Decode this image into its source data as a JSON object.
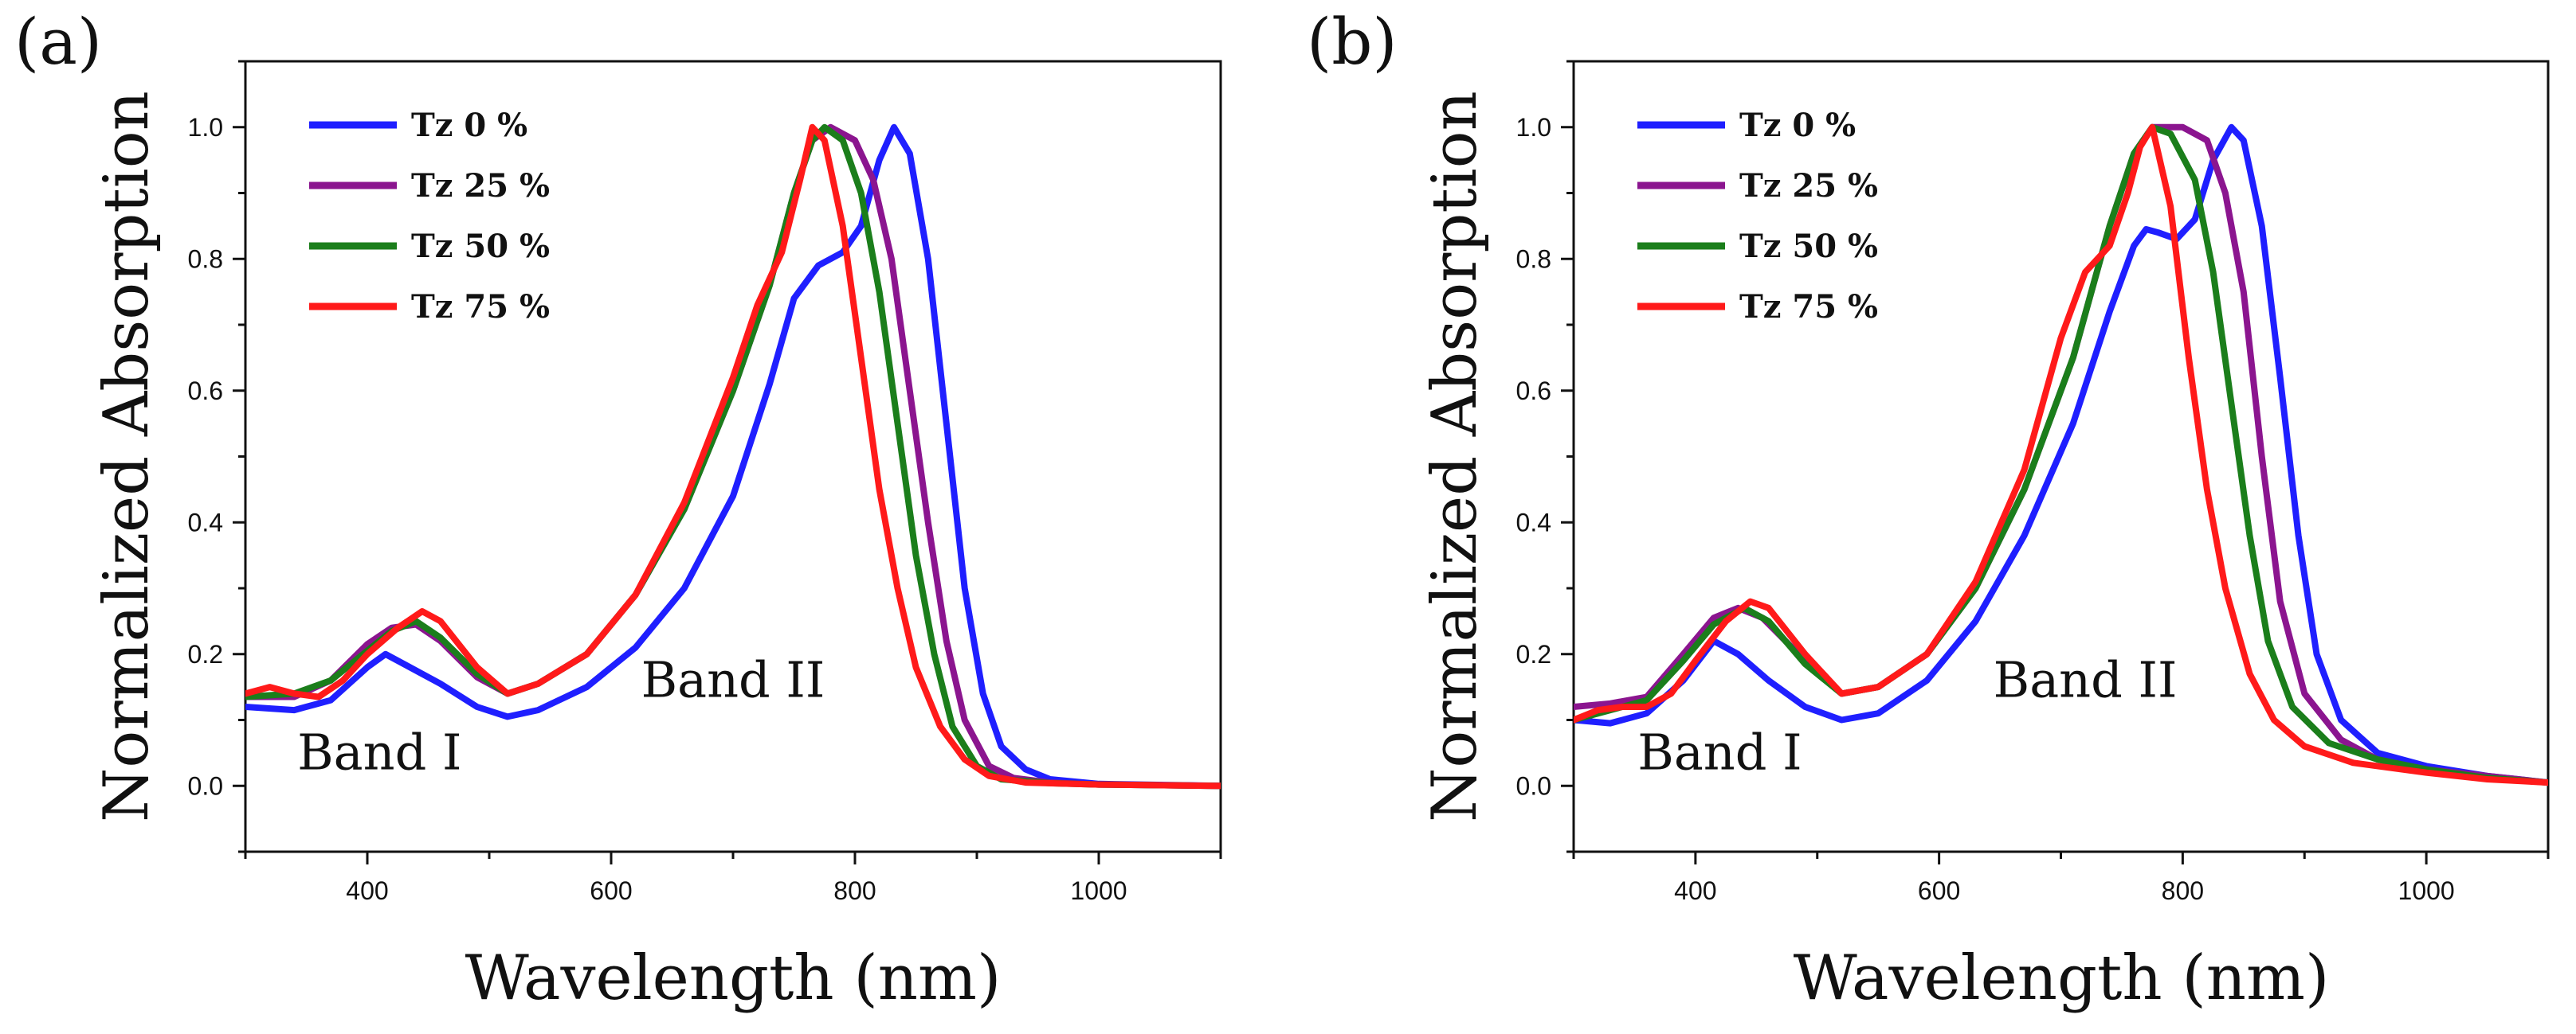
{
  "chart_data": [
    {
      "type": "line",
      "panel_label": "(a)",
      "title": "",
      "xlabel": "Wavelength (nm)",
      "ylabel": "Normalized Absorption",
      "xlim": [
        300,
        1100
      ],
      "ylim": [
        -0.1,
        1.1
      ],
      "x_ticks": [
        400,
        600,
        800,
        1000
      ],
      "x_tick_labels": [
        "400",
        "600",
        "800",
        "1000"
      ],
      "y_ticks": [
        0.0,
        0.2,
        0.4,
        0.6,
        0.8,
        1.0
      ],
      "y_tick_labels": [
        "0.0",
        "0.2",
        "0.4",
        "0.6",
        "0.8",
        "1.0"
      ],
      "grid": false,
      "legend_position": "top-left",
      "annotations": [
        {
          "text": "Band I",
          "x": 410,
          "y": 0.025
        },
        {
          "text": "Band II",
          "x": 700,
          "y": 0.135
        }
      ],
      "series": [
        {
          "name": "Tz 0 %",
          "color": "#1f1fff",
          "points": [
            [
              300,
              0.12
            ],
            [
              340,
              0.115
            ],
            [
              370,
              0.13
            ],
            [
              400,
              0.18
            ],
            [
              415,
              0.2
            ],
            [
              430,
              0.185
            ],
            [
              460,
              0.155
            ],
            [
              490,
              0.12
            ],
            [
              515,
              0.105
            ],
            [
              540,
              0.115
            ],
            [
              580,
              0.15
            ],
            [
              620,
              0.21
            ],
            [
              660,
              0.3
            ],
            [
              700,
              0.44
            ],
            [
              730,
              0.61
            ],
            [
              750,
              0.74
            ],
            [
              770,
              0.79
            ],
            [
              790,
              0.81
            ],
            [
              805,
              0.85
            ],
            [
              820,
              0.95
            ],
            [
              832,
              1.0
            ],
            [
              845,
              0.96
            ],
            [
              860,
              0.8
            ],
            [
              875,
              0.55
            ],
            [
              890,
              0.3
            ],
            [
              905,
              0.14
            ],
            [
              920,
              0.06
            ],
            [
              940,
              0.025
            ],
            [
              960,
              0.01
            ],
            [
              1000,
              0.003
            ],
            [
              1100,
              0.0
            ]
          ]
        },
        {
          "name": "Tz 25 %",
          "color": "#8b158f",
          "points": [
            [
              300,
              0.135
            ],
            [
              340,
              0.135
            ],
            [
              370,
              0.16
            ],
            [
              400,
              0.215
            ],
            [
              420,
              0.24
            ],
            [
              440,
              0.245
            ],
            [
              460,
              0.22
            ],
            [
              490,
              0.165
            ],
            [
              515,
              0.14
            ],
            [
              540,
              0.155
            ],
            [
              580,
              0.2
            ],
            [
              620,
              0.29
            ],
            [
              660,
              0.42
            ],
            [
              700,
              0.6
            ],
            [
              730,
              0.76
            ],
            [
              750,
              0.9
            ],
            [
              765,
              0.98
            ],
            [
              780,
              1.0
            ],
            [
              800,
              0.98
            ],
            [
              815,
              0.92
            ],
            [
              830,
              0.8
            ],
            [
              845,
              0.6
            ],
            [
              860,
              0.4
            ],
            [
              875,
              0.22
            ],
            [
              890,
              0.1
            ],
            [
              910,
              0.03
            ],
            [
              930,
              0.012
            ],
            [
              960,
              0.005
            ],
            [
              1000,
              0.002
            ],
            [
              1100,
              0.0
            ]
          ]
        },
        {
          "name": "Tz 50 %",
          "color": "#1b7e1b",
          "points": [
            [
              300,
              0.135
            ],
            [
              340,
              0.14
            ],
            [
              370,
              0.16
            ],
            [
              400,
              0.205
            ],
            [
              420,
              0.235
            ],
            [
              440,
              0.25
            ],
            [
              460,
              0.225
            ],
            [
              490,
              0.17
            ],
            [
              515,
              0.14
            ],
            [
              540,
              0.155
            ],
            [
              580,
              0.2
            ],
            [
              620,
              0.29
            ],
            [
              660,
              0.42
            ],
            [
              700,
              0.6
            ],
            [
              730,
              0.76
            ],
            [
              750,
              0.9
            ],
            [
              765,
              0.98
            ],
            [
              775,
              1.0
            ],
            [
              790,
              0.98
            ],
            [
              805,
              0.9
            ],
            [
              820,
              0.75
            ],
            [
              835,
              0.55
            ],
            [
              850,
              0.35
            ],
            [
              865,
              0.2
            ],
            [
              880,
              0.09
            ],
            [
              900,
              0.03
            ],
            [
              920,
              0.01
            ],
            [
              960,
              0.004
            ],
            [
              1000,
              0.002
            ],
            [
              1100,
              0.0
            ]
          ]
        },
        {
          "name": "Tz 75 %",
          "color": "#ff1a1a",
          "points": [
            [
              300,
              0.14
            ],
            [
              320,
              0.15
            ],
            [
              340,
              0.14
            ],
            [
              360,
              0.135
            ],
            [
              380,
              0.16
            ],
            [
              400,
              0.2
            ],
            [
              425,
              0.24
            ],
            [
              445,
              0.265
            ],
            [
              460,
              0.25
            ],
            [
              490,
              0.18
            ],
            [
              515,
              0.14
            ],
            [
              540,
              0.155
            ],
            [
              580,
              0.2
            ],
            [
              620,
              0.29
            ],
            [
              660,
              0.43
            ],
            [
              700,
              0.62
            ],
            [
              720,
              0.73
            ],
            [
              740,
              0.81
            ],
            [
              755,
              0.92
            ],
            [
              765,
              1.0
            ],
            [
              775,
              0.98
            ],
            [
              790,
              0.85
            ],
            [
              805,
              0.65
            ],
            [
              820,
              0.45
            ],
            [
              835,
              0.3
            ],
            [
              850,
              0.18
            ],
            [
              870,
              0.09
            ],
            [
              890,
              0.04
            ],
            [
              910,
              0.015
            ],
            [
              940,
              0.005
            ],
            [
              1000,
              0.002
            ],
            [
              1100,
              0.0
            ]
          ]
        }
      ]
    },
    {
      "type": "line",
      "panel_label": "(b)",
      "title": "",
      "xlabel": "Wavelength (nm)",
      "ylabel": "Normalized Absorption",
      "xlim": [
        300,
        1100
      ],
      "ylim": [
        -0.1,
        1.1
      ],
      "x_ticks": [
        400,
        600,
        800,
        1000
      ],
      "x_tick_labels": [
        "400",
        "600",
        "800",
        "1000"
      ],
      "y_ticks": [
        0.0,
        0.2,
        0.4,
        0.6,
        0.8,
        1.0
      ],
      "y_tick_labels": [
        "0.0",
        "0.2",
        "0.4",
        "0.6",
        "0.8",
        "1.0"
      ],
      "grid": false,
      "legend_position": "top-left",
      "annotations": [
        {
          "text": "Band I",
          "x": 420,
          "y": 0.025
        },
        {
          "text": "Band II",
          "x": 720,
          "y": 0.135
        }
      ],
      "series": [
        {
          "name": "Tz 0 %",
          "color": "#1f1fff",
          "points": [
            [
              300,
              0.1
            ],
            [
              330,
              0.095
            ],
            [
              360,
              0.11
            ],
            [
              390,
              0.16
            ],
            [
              415,
              0.22
            ],
            [
              435,
              0.2
            ],
            [
              460,
              0.16
            ],
            [
              490,
              0.12
            ],
            [
              520,
              0.1
            ],
            [
              550,
              0.11
            ],
            [
              590,
              0.16
            ],
            [
              630,
              0.25
            ],
            [
              670,
              0.38
            ],
            [
              710,
              0.55
            ],
            [
              740,
              0.72
            ],
            [
              760,
              0.82
            ],
            [
              770,
              0.845
            ],
            [
              780,
              0.84
            ],
            [
              795,
              0.83
            ],
            [
              810,
              0.86
            ],
            [
              825,
              0.95
            ],
            [
              840,
              1.0
            ],
            [
              850,
              0.98
            ],
            [
              865,
              0.85
            ],
            [
              880,
              0.62
            ],
            [
              895,
              0.38
            ],
            [
              910,
              0.2
            ],
            [
              930,
              0.1
            ],
            [
              960,
              0.05
            ],
            [
              1000,
              0.03
            ],
            [
              1050,
              0.015
            ],
            [
              1100,
              0.005
            ]
          ]
        },
        {
          "name": "Tz 25 %",
          "color": "#8b158f",
          "points": [
            [
              300,
              0.12
            ],
            [
              330,
              0.125
            ],
            [
              360,
              0.135
            ],
            [
              390,
              0.2
            ],
            [
              415,
              0.255
            ],
            [
              435,
              0.27
            ],
            [
              455,
              0.255
            ],
            [
              490,
              0.19
            ],
            [
              520,
              0.14
            ],
            [
              550,
              0.15
            ],
            [
              590,
              0.2
            ],
            [
              630,
              0.3
            ],
            [
              670,
              0.45
            ],
            [
              710,
              0.65
            ],
            [
              740,
              0.85
            ],
            [
              760,
              0.96
            ],
            [
              775,
              1.0
            ],
            [
              800,
              1.0
            ],
            [
              820,
              0.98
            ],
            [
              835,
              0.9
            ],
            [
              850,
              0.75
            ],
            [
              865,
              0.5
            ],
            [
              880,
              0.28
            ],
            [
              900,
              0.14
            ],
            [
              930,
              0.07
            ],
            [
              960,
              0.04
            ],
            [
              1000,
              0.025
            ],
            [
              1050,
              0.015
            ],
            [
              1100,
              0.005
            ]
          ]
        },
        {
          "name": "Tz 50 %",
          "color": "#1b7e1b",
          "points": [
            [
              300,
              0.1
            ],
            [
              330,
              0.115
            ],
            [
              360,
              0.13
            ],
            [
              390,
              0.19
            ],
            [
              415,
              0.245
            ],
            [
              440,
              0.27
            ],
            [
              460,
              0.25
            ],
            [
              490,
              0.185
            ],
            [
              520,
              0.14
            ],
            [
              550,
              0.15
            ],
            [
              590,
              0.2
            ],
            [
              630,
              0.3
            ],
            [
              670,
              0.45
            ],
            [
              710,
              0.65
            ],
            [
              740,
              0.85
            ],
            [
              760,
              0.96
            ],
            [
              775,
              1.0
            ],
            [
              790,
              0.99
            ],
            [
              810,
              0.92
            ],
            [
              825,
              0.78
            ],
            [
              840,
              0.58
            ],
            [
              855,
              0.38
            ],
            [
              870,
              0.22
            ],
            [
              890,
              0.12
            ],
            [
              920,
              0.065
            ],
            [
              960,
              0.04
            ],
            [
              1000,
              0.025
            ],
            [
              1050,
              0.012
            ],
            [
              1100,
              0.005
            ]
          ]
        },
        {
          "name": "Tz 75 %",
          "color": "#ff1a1a",
          "points": [
            [
              300,
              0.1
            ],
            [
              320,
              0.115
            ],
            [
              340,
              0.12
            ],
            [
              360,
              0.12
            ],
            [
              380,
              0.14
            ],
            [
              400,
              0.19
            ],
            [
              425,
              0.25
            ],
            [
              445,
              0.28
            ],
            [
              460,
              0.27
            ],
            [
              490,
              0.2
            ],
            [
              520,
              0.14
            ],
            [
              550,
              0.15
            ],
            [
              590,
              0.2
            ],
            [
              630,
              0.31
            ],
            [
              670,
              0.48
            ],
            [
              700,
              0.68
            ],
            [
              720,
              0.78
            ],
            [
              740,
              0.82
            ],
            [
              755,
              0.9
            ],
            [
              765,
              0.97
            ],
            [
              775,
              1.0
            ],
            [
              790,
              0.88
            ],
            [
              805,
              0.65
            ],
            [
              820,
              0.45
            ],
            [
              835,
              0.3
            ],
            [
              855,
              0.17
            ],
            [
              875,
              0.1
            ],
            [
              900,
              0.06
            ],
            [
              940,
              0.035
            ],
            [
              1000,
              0.02
            ],
            [
              1050,
              0.01
            ],
            [
              1100,
              0.005
            ]
          ]
        }
      ]
    }
  ]
}
